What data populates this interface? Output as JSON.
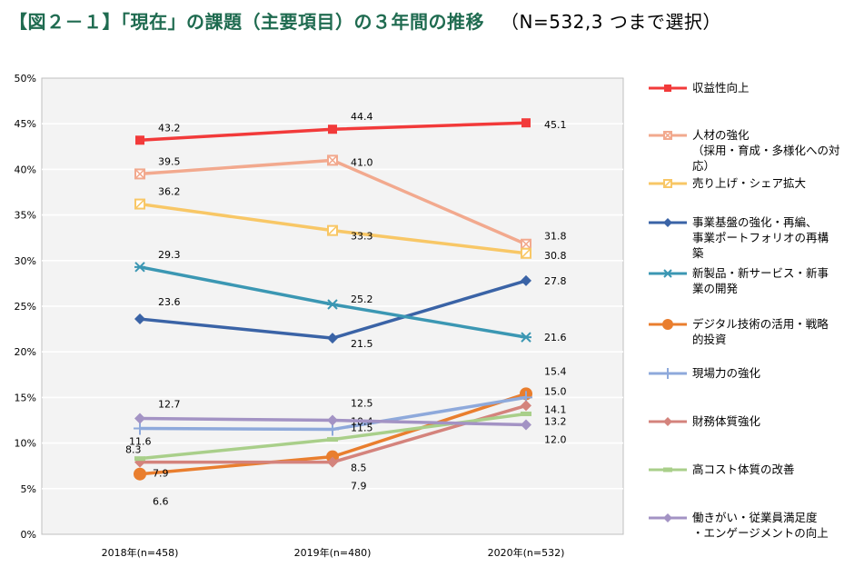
{
  "title": "【図２－１】「現在」の課題（主要項目）の３年間の推移",
  "title_note": "（N=532,3 つまで選択）",
  "chart_data": {
    "type": "line",
    "categories": [
      "2018年(n=458)",
      "2019年(n=480)",
      "2020年(n=532)"
    ],
    "ylim": [
      0,
      50
    ],
    "ytick_labels": [
      "0%",
      "5%",
      "10%",
      "15%",
      "20%",
      "25%",
      "30%",
      "35%",
      "40%",
      "45%",
      "50%"
    ],
    "grid": true,
    "legend_position": "right",
    "series": [
      {
        "name": "収益性向上",
        "values": [
          43.2,
          44.4,
          45.1
        ],
        "color": "#f23a3a",
        "marker": "square"
      },
      {
        "name": "人材の強化（採用・育成・多様化への対応）",
        "values": [
          39.5,
          41.0,
          31.8
        ],
        "color": "#f2a98e",
        "marker": "square-x"
      },
      {
        "name": "売り上げ・シェア拡大",
        "values": [
          36.2,
          33.3,
          30.8
        ],
        "color": "#f8c766",
        "marker": "square-slash"
      },
      {
        "name": "事業基盤の強化・再編、事業ポートフォリオの再構築",
        "values": [
          23.6,
          21.5,
          27.8
        ],
        "color": "#3a63a6",
        "marker": "diamond"
      },
      {
        "name": "新製品・新サービス・新事業の開発",
        "values": [
          29.3,
          25.2,
          21.6
        ],
        "color": "#3b97b3",
        "marker": "star"
      },
      {
        "name": "デジタル技術の活用・戦略的投資",
        "values": [
          6.6,
          8.5,
          15.4
        ],
        "color": "#e97e2e",
        "marker": "circle"
      },
      {
        "name": "現場力の強化",
        "values": [
          11.6,
          11.5,
          15.0
        ],
        "color": "#8ea9db",
        "marker": "plus"
      },
      {
        "name": "財務体質強化",
        "values": [
          7.9,
          7.9,
          14.1
        ],
        "color": "#d4837c",
        "marker": "diamond"
      },
      {
        "name": "高コスト体質の改善",
        "values": [
          8.3,
          10.4,
          13.2
        ],
        "color": "#a9cf8a",
        "marker": "dash"
      },
      {
        "name": "働きがい・従業員満足度・エンゲージメントの向上",
        "values": [
          12.7,
          12.5,
          12.0
        ],
        "color": "#a393c4",
        "marker": "diamond"
      }
    ],
    "legend_lines": [
      [
        "収益性向上"
      ],
      [
        "人材の強化",
        "（採用・育成・多様化への対",
        "応）"
      ],
      [
        "売り上げ・シェア拡大"
      ],
      [
        "事業基盤の強化・再編、",
        "事業ポートフォリオの再構",
        "築"
      ],
      [
        "新製品・新サービス・新事",
        "業の開発"
      ],
      [
        "デジタル技術の活用・戦略",
        "的投資"
      ],
      [
        "現場力の強化"
      ],
      [
        "財務体質強化"
      ],
      [
        "高コスト体質の改善"
      ],
      [
        "働きがい・従業員満足度",
        "・エンゲージメントの向上"
      ]
    ]
  }
}
